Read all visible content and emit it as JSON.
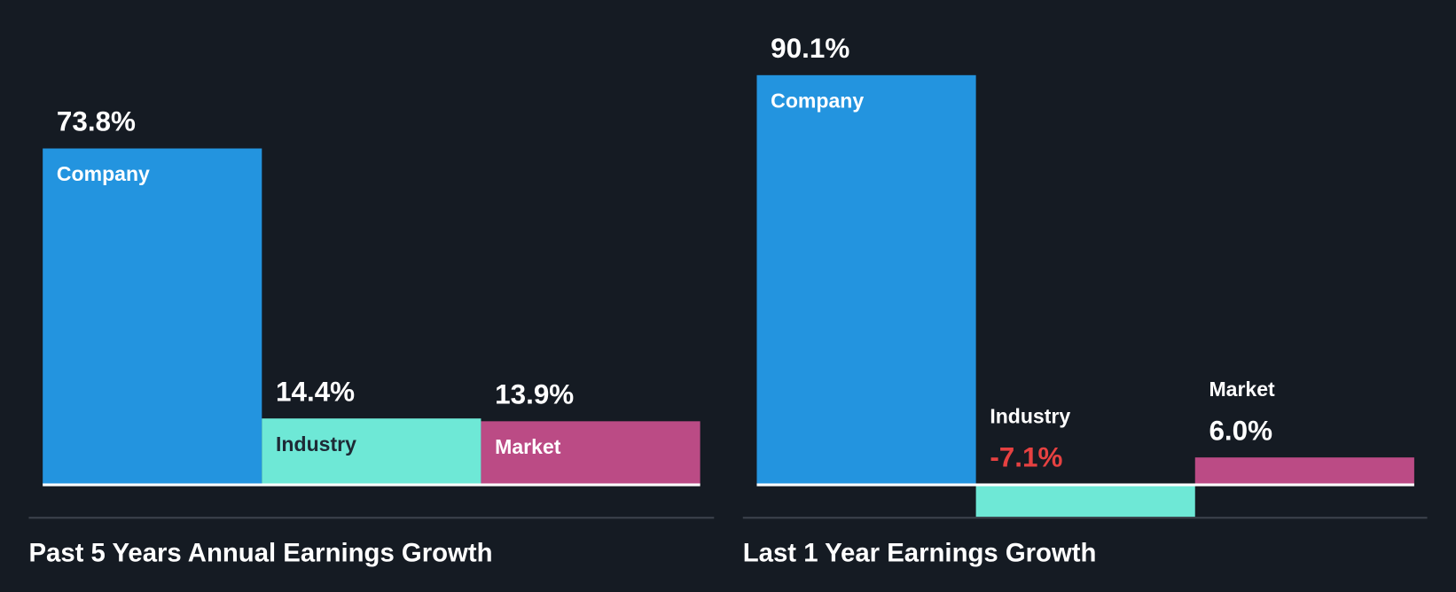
{
  "chart_data": [
    {
      "type": "bar",
      "title": "Past 5 Years Annual Earnings Growth",
      "categories": [
        "Company",
        "Industry",
        "Market"
      ],
      "values": [
        73.8,
        14.4,
        13.9
      ],
      "value_labels": [
        "73.8%",
        "14.4%",
        "13.9%"
      ],
      "colors": [
        "#2394df",
        "#6ee8d6",
        "#bb4b85"
      ],
      "unit": "%"
    },
    {
      "type": "bar",
      "title": "Last 1 Year Earnings Growth",
      "categories": [
        "Company",
        "Industry",
        "Market"
      ],
      "values": [
        90.1,
        -7.1,
        6.0
      ],
      "value_labels": [
        "90.1%",
        "-7.1%",
        "6.0%"
      ],
      "colors": [
        "#2394df",
        "#6ee8d6",
        "#bb4b85"
      ],
      "unit": "%"
    }
  ],
  "colors": {
    "negative_value": "#e64141",
    "label_dark": "#1e2a36",
    "label_light": "#ffffff"
  }
}
